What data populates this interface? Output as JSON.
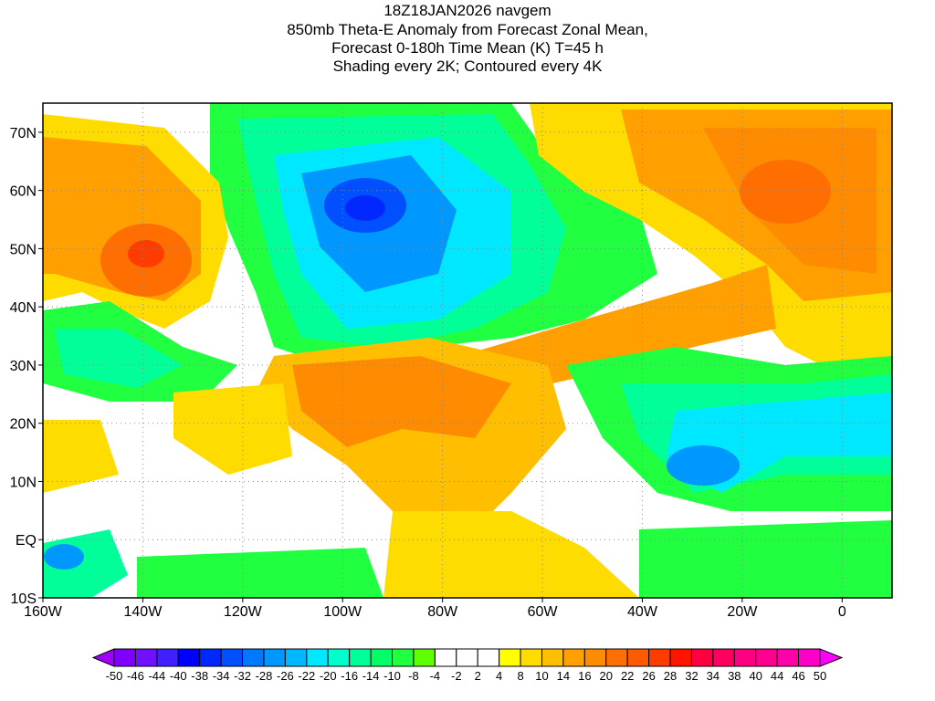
{
  "title": {
    "lines": [
      "18Z18JAN2026 navgem",
      "850mb Theta-E Anomaly from Forecast Zonal Mean,",
      "Forecast 0-180h Time Mean (K) T=45 h",
      "Shading every 2K; Contoured every 4K"
    ]
  },
  "axes": {
    "x_labels": [
      "160W",
      "140W",
      "120W",
      "100W",
      "80W",
      "60W",
      "40W",
      "20W",
      "0"
    ],
    "x_values": [
      -160,
      -140,
      -120,
      -100,
      -80,
      -60,
      -40,
      -20,
      0
    ],
    "y_labels": [
      "10S",
      "EQ",
      "10N",
      "20N",
      "30N",
      "40N",
      "50N",
      "60N",
      "70N"
    ],
    "y_values": [
      -10,
      0,
      10,
      20,
      30,
      40,
      50,
      60,
      70
    ],
    "lon_range": [
      -160,
      10
    ],
    "lat_range": [
      -10,
      75
    ]
  },
  "colorbar": {
    "labels": [
      "-50",
      "-46",
      "-44",
      "-40",
      "-38",
      "-34",
      "-32",
      "-28",
      "-26",
      "-22",
      "-20",
      "-16",
      "-14",
      "-10",
      "-8",
      "-4",
      "-2",
      "2",
      "4",
      "8",
      "10",
      "14",
      "16",
      "20",
      "22",
      "26",
      "28",
      "32",
      "34",
      "38",
      "40",
      "44",
      "46",
      "50"
    ],
    "colors": [
      "#8000ff",
      "#7010ff",
      "#4020ff",
      "#0000ff",
      "#0028ff",
      "#0050ff",
      "#0078ff",
      "#0098ff",
      "#00b8ff",
      "#00e8ff",
      "#00ffcc",
      "#00ff99",
      "#00ff66",
      "#20ff40",
      "#60ff00",
      "#ffffff",
      "#ffffff",
      "#ffffff",
      "#ffff00",
      "#ffdc00",
      "#ffbe00",
      "#ffa000",
      "#ff8c00",
      "#ff6e00",
      "#ff5a00",
      "#ff3c00",
      "#ff1400",
      "#ff0040",
      "#ff0060",
      "#ff0080",
      "#ff0090",
      "#ff00a8",
      "#ff00c8"
    ],
    "under_color": "#a000ff",
    "over_color": "#ff00ff"
  }
}
